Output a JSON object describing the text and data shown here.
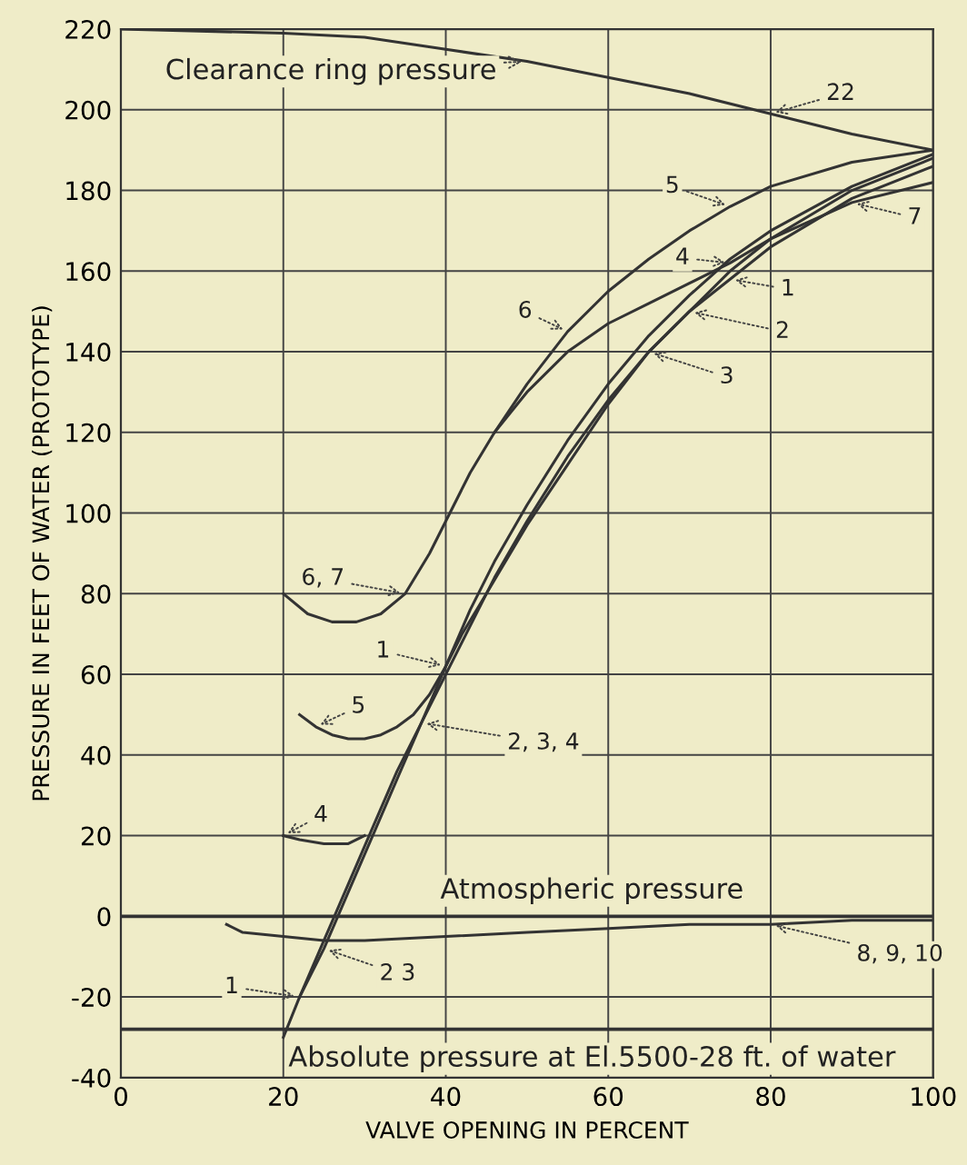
{
  "chart_data": {
    "type": "line",
    "xlabel": "VALVE OPENING IN PERCENT",
    "ylabel": "PRESSURE IN FEET OF WATER (PROTOTYPE)",
    "xlim": [
      0,
      100
    ],
    "ylim": [
      -40,
      220
    ],
    "xticks": [
      0,
      20,
      40,
      60,
      80,
      100
    ],
    "yticks": [
      -40,
      -20,
      0,
      20,
      40,
      60,
      80,
      100,
      120,
      140,
      160,
      180,
      200,
      220
    ],
    "grid": true,
    "series": [
      {
        "color": "#333333",
        "x": [
          0,
          20,
          30,
          40,
          50,
          60,
          70,
          80,
          90,
          100
        ],
        "values": [
          220,
          219,
          218,
          215,
          212,
          208,
          204,
          199,
          194,
          190
        ]
      },
      {
        "color": "#333333",
        "x": [
          20,
          23,
          26,
          29,
          32,
          35,
          38,
          40,
          43,
          46,
          50,
          55,
          60,
          65,
          70,
          75,
          80,
          90,
          100
        ],
        "values": [
          80,
          75,
          73,
          73,
          75,
          80,
          90,
          98,
          110,
          120,
          132,
          145,
          155,
          163,
          170,
          176,
          181,
          187,
          190
        ]
      },
      {
        "color": "#333333",
        "x": [
          46,
          50,
          55,
          60,
          65,
          70,
          75,
          80,
          90,
          100
        ],
        "values": [
          120,
          130,
          140,
          147,
          152,
          157,
          162,
          168,
          177,
          182
        ]
      },
      {
        "color": "#333333",
        "x": [
          22,
          24,
          26,
          28,
          30,
          32,
          34,
          36,
          38,
          40,
          42,
          45,
          50,
          55,
          60,
          65,
          70,
          75,
          80,
          90,
          100
        ],
        "values": [
          50,
          47,
          45,
          44,
          44,
          45,
          47,
          50,
          55,
          62,
          70,
          80,
          97,
          112,
          127,
          140,
          150,
          160,
          168,
          180,
          188
        ]
      },
      {
        "color": "#333333",
        "x": [
          20,
          22,
          25,
          28,
          31,
          34,
          37,
          40,
          43,
          46,
          50,
          55,
          60,
          65,
          70,
          75,
          80,
          90,
          100
        ],
        "values": [
          -30,
          -20,
          -6,
          8,
          22,
          36,
          48,
          60,
          72,
          84,
          98,
          114,
          128,
          140,
          150,
          158,
          166,
          178,
          186
        ]
      },
      {
        "color": "#333333",
        "x": [
          22,
          25,
          28,
          31,
          34,
          37,
          40,
          43,
          46,
          50,
          55,
          60,
          65,
          70,
          75,
          80,
          90,
          100
        ],
        "values": [
          -20,
          -8,
          6,
          20,
          34,
          48,
          62,
          76,
          88,
          102,
          118,
          132,
          144,
          154,
          163,
          170,
          181,
          189
        ]
      },
      {
        "color": "#333333",
        "x": [
          20,
          22,
          25,
          28,
          30
        ],
        "values": [
          20,
          19,
          18,
          18,
          20
        ]
      },
      {
        "color": "#333333",
        "x": [
          13,
          15,
          20,
          25,
          30,
          40,
          50,
          60,
          70,
          80,
          90,
          100
        ],
        "values": [
          -2,
          -4,
          -5,
          -6,
          -6,
          -5,
          -4,
          -3,
          -2,
          -2,
          -1,
          -1
        ]
      }
    ],
    "ref_lines": [
      {
        "axis": "y",
        "value": 0,
        "label": "Atmospheric pressure",
        "color": "#333333"
      },
      {
        "axis": "y",
        "value": -28,
        "label": "Absolute pressure at El.5500-28 ft. of water",
        "color": "#333333"
      }
    ],
    "annotations": [
      {
        "text": "Clearance ring pressure",
        "x": 50,
        "y": 212
      },
      {
        "text": "22",
        "x": 80,
        "y": 199
      },
      {
        "text": "5",
        "x": 75,
        "y": 176
      },
      {
        "text": "7",
        "x": 90,
        "y": 177
      },
      {
        "text": "4",
        "x": 75,
        "y": 162
      },
      {
        "text": "6",
        "x": 55,
        "y": 145
      },
      {
        "text": "1",
        "x": 75,
        "y": 158
      },
      {
        "text": "2",
        "x": 70,
        "y": 150
      },
      {
        "text": "3",
        "x": 65,
        "y": 140
      },
      {
        "text": "6, 7",
        "x": 35,
        "y": 80
      },
      {
        "text": "1",
        "x": 40,
        "y": 62
      },
      {
        "text": "5",
        "x": 24,
        "y": 47
      },
      {
        "text": "2, 3, 4",
        "x": 37,
        "y": 48
      },
      {
        "text": "4",
        "x": 20,
        "y": 20
      },
      {
        "text": "1",
        "x": 22,
        "y": -20
      },
      {
        "text": "2 3",
        "x": 25,
        "y": -8
      },
      {
        "text": "8, 9, 10",
        "x": 80,
        "y": -2
      }
    ]
  }
}
